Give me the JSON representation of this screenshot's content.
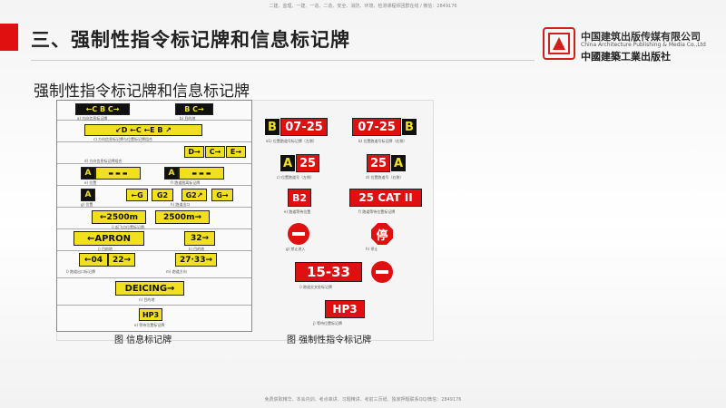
{
  "header": {
    "top_note": "二建、监理、一建、一造、二造、安全、消防、环境、检测课程师团群在线 / 微信：2849176",
    "title": "三、强制性指令标记牌和信息标记牌",
    "publisher_cn": "中国建筑出版传媒有限公司",
    "publisher_en": "China Architecture Publishing & Media Co.,Ltd",
    "publisher_calligraphy": "中國建築工業出版社"
  },
  "subtitle": "强制性指令标记牌和信息标记牌",
  "info_signs": {
    "figure_caption": "图     信息标记牌",
    "row1": {
      "s1": "←C B C→",
      "s2": "B C→",
      "cap_a": "a)  方向信息标记牌",
      "cap_b": "b)  目的地"
    },
    "row2": {
      "s1": "↙D ←C ←E B ↗",
      "cap": "c)  方向信息标记牌与位置标记牌组合"
    },
    "row3": {
      "s1": "D→",
      "s2": "C→",
      "s3": "E→",
      "cap": "d)  方向信息标记牌组合"
    },
    "row4": {
      "s1": "A",
      "s2": "A",
      "cap_a": "e)  位置",
      "cap_b": "f)  跑道脱离标记牌"
    },
    "row5": {
      "s1": "A",
      "s2": "←G",
      "s3": "G2",
      "s4": "G2↗",
      "s5": "G→",
      "cap_a": "g)  位置",
      "cap_b": "h)  跑道出口"
    },
    "row6": {
      "s1": "←2500m",
      "s2": "2500m→",
      "cap": "i)  起飞点位置标记牌"
    },
    "row7": {
      "s1": "←APRON",
      "s2": "32→",
      "cap_a": "j)  目的地",
      "cap_b": "k)  目的地"
    },
    "row8": {
      "s1": "←04",
      "s2": "22→",
      "s3": "27·33→",
      "cap_a": "l)  跑道出口标记牌",
      "cap_b": "m)  跑道方向"
    },
    "row9": {
      "s1": "DEICING→",
      "cap": "n)  目的地"
    },
    "row10": {
      "s1": "HP3",
      "cap": "o)  等待位置标记牌"
    }
  },
  "mandatory_signs": {
    "figure_caption": "图     强制性指令标记牌",
    "s1a": "B",
    "s1b": "07-25",
    "cap1": "a1) 位置跑道号标记牌（左侧）",
    "s2a": "07-25",
    "s2b": "B",
    "cap2": "b) 位置跑道号标记牌（右侧）",
    "s3a": "A",
    "s3b": "25",
    "cap3": "c) 位置跑道号（左侧）",
    "s4a": "25",
    "s4b": "A",
    "cap4": "d) 位置跑道号（右侧）",
    "s5": "B2",
    "cap5": "e) 跑道等待位置",
    "s6": "25 CAT  II",
    "cap6": "f) 跑道等待位置标记牌",
    "cap7": "g) 禁止进入",
    "s8": "停",
    "cap8": "h) 停止",
    "s9": "15-33",
    "cap9": "i) 跑道交叉处标记牌",
    "s10": "HP3",
    "cap10": "j) 等待位置标记牌"
  },
  "footer_note": "免费获取精华、本会内训、考点串讲、习题精讲、考前三页纸、独家押题联系QQ/微信：2849176"
}
